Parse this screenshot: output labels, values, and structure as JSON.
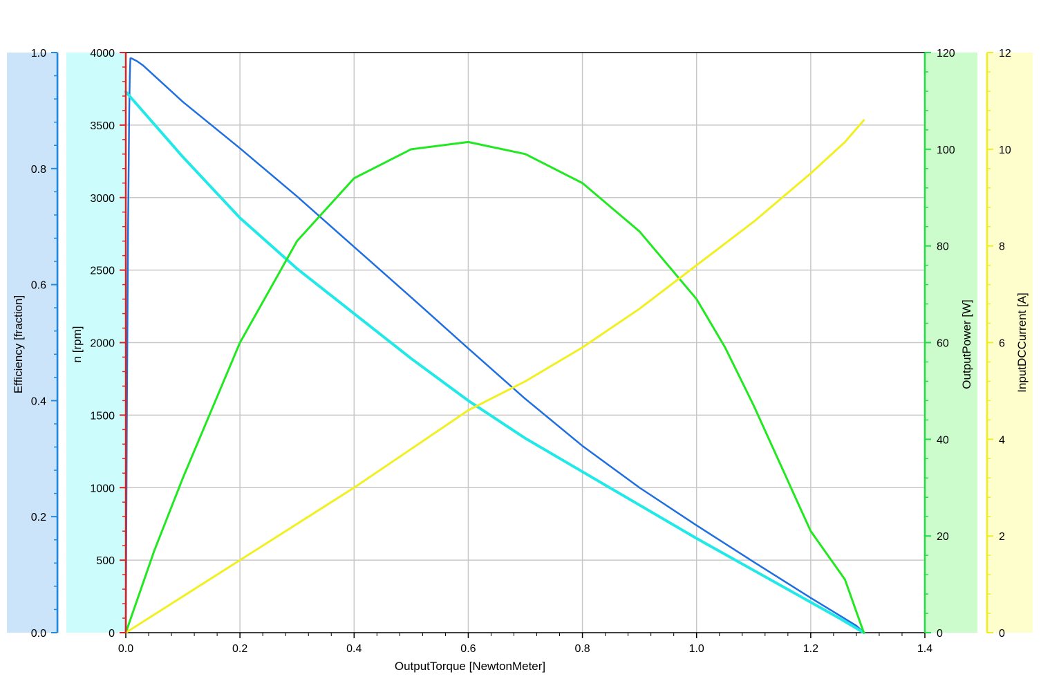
{
  "chart_data": {
    "type": "line",
    "title": "",
    "grid": true,
    "x_axis": {
      "label": "OutputTorque [NewtonMeter]",
      "range": [
        0.0,
        1.4
      ],
      "ticks": [
        "0.0",
        "0.2",
        "0.4",
        "0.6",
        "0.8",
        "1.0",
        "1.2",
        "1.4"
      ]
    },
    "y_axes": [
      {
        "id": "efficiency",
        "label": "Efficiency [fraction]",
        "range": [
          0.0,
          1.0
        ],
        "ticks": [
          "0.0",
          "0.2",
          "0.4",
          "0.6",
          "0.8",
          "1.0"
        ],
        "band_color": "#cce4fa",
        "axis_color": "#2288dd",
        "side": "left-outer"
      },
      {
        "id": "speed",
        "label": "n [rpm]",
        "range": [
          0,
          4000
        ],
        "ticks": [
          "0",
          "500",
          "1000",
          "1500",
          "2000",
          "2500",
          "3000",
          "3500",
          "4000"
        ],
        "band_color": "#ccfcfc",
        "axis_color": "#dd2222",
        "side": "left-inner"
      },
      {
        "id": "power",
        "label": "OutputPower [W]",
        "range": [
          0,
          120
        ],
        "ticks": [
          "0",
          "20",
          "40",
          "60",
          "80",
          "100",
          "120"
        ],
        "band_color": "#ccfccc",
        "axis_color": "#22dd44",
        "side": "right-inner"
      },
      {
        "id": "current",
        "label": "InputDCCurrent [A]",
        "range": [
          0,
          12
        ],
        "ticks": [
          "0",
          "2",
          "4",
          "6",
          "8",
          "10",
          "12"
        ],
        "band_color": "#fefecc",
        "axis_color": "#eeee22",
        "side": "right-outer"
      }
    ],
    "series": [
      {
        "axis": "efficiency",
        "color": "#1f6fe0",
        "width": 2.5,
        "x": [
          0.0,
          0.001,
          0.002,
          0.003,
          0.004,
          0.005,
          0.006,
          0.007,
          0.008,
          0.01,
          0.02,
          0.03,
          0.05,
          0.1,
          0.2,
          0.3,
          0.4,
          0.5,
          0.6,
          0.7,
          0.8,
          0.9,
          1.0,
          1.1,
          1.2,
          1.25,
          1.28,
          1.293
        ],
        "y": [
          0.0,
          0.2,
          0.4,
          0.55,
          0.7,
          0.8,
          0.9,
          0.96,
          0.99,
          0.99,
          0.985,
          0.978,
          0.96,
          0.915,
          0.835,
          0.752,
          0.665,
          0.578,
          0.49,
          0.403,
          0.322,
          0.25,
          0.185,
          0.122,
          0.06,
          0.03,
          0.012,
          0.0
        ]
      },
      {
        "axis": "speed",
        "color": "#22e8e8",
        "width": 4,
        "x": [
          0.0,
          0.02,
          0.1,
          0.2,
          0.3,
          0.4,
          0.5,
          0.6,
          0.7,
          0.8,
          0.9,
          1.0,
          1.1,
          1.2,
          1.25,
          1.293
        ],
        "y": [
          3730,
          3640,
          3280,
          2860,
          2510,
          2200,
          1890,
          1600,
          1340,
          1110,
          880,
          650,
          430,
          210,
          100,
          0
        ]
      },
      {
        "axis": "power",
        "color": "#22e822",
        "width": 3,
        "x": [
          0.0,
          0.05,
          0.1,
          0.2,
          0.3,
          0.4,
          0.5,
          0.6,
          0.7,
          0.8,
          0.9,
          1.0,
          1.05,
          1.1,
          1.15,
          1.2,
          1.26,
          1.293
        ],
        "y": [
          0,
          17,
          32,
          60,
          81,
          94,
          100,
          101.5,
          99,
          93,
          83,
          69,
          59,
          47,
          34,
          21,
          11,
          0
        ]
      },
      {
        "axis": "current",
        "color": "#f0f022",
        "width": 3,
        "x": [
          0.0,
          0.1,
          0.2,
          0.3,
          0.4,
          0.5,
          0.6,
          0.7,
          0.8,
          0.9,
          1.0,
          1.1,
          1.2,
          1.26,
          1.293
        ],
        "y": [
          0,
          0.75,
          1.5,
          2.25,
          3.0,
          3.8,
          4.6,
          5.2,
          5.9,
          6.7,
          7.6,
          8.5,
          9.5,
          10.15,
          10.6
        ]
      }
    ]
  }
}
